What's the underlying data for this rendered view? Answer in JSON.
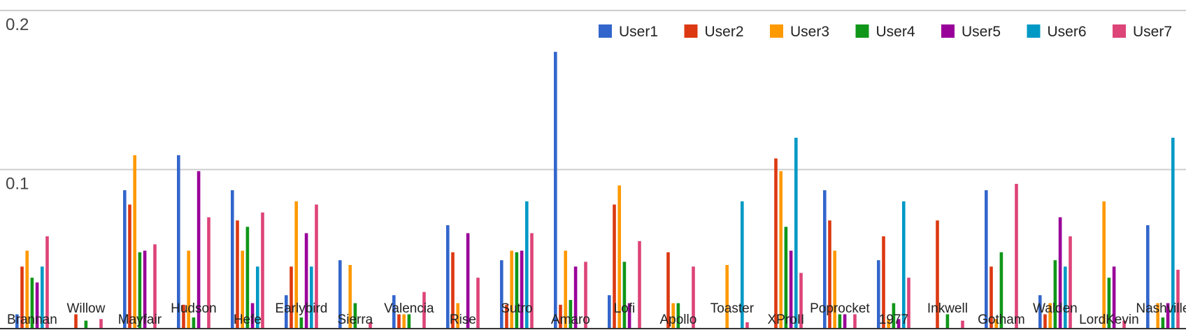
{
  "chart_data": {
    "type": "bar",
    "ylim": [
      0,
      0.2
    ],
    "yticks": [
      {
        "value": 0.2,
        "label": "0.2"
      },
      {
        "value": 0.1,
        "label": "0.1"
      }
    ],
    "grid": true,
    "legend_position": "top-right",
    "categories": [
      "Brannan",
      "Willow",
      "Mayfair",
      "Hudson",
      "Hefe",
      "Earlybird",
      "Sierra",
      "Valencia",
      "Rise",
      "Sutro",
      "Amaro",
      "Lofi",
      "Apollo",
      "Toaster",
      "XProII",
      "Poprocket",
      "1977",
      "Inkwell",
      "Gotham",
      "Walden",
      "LordKevin",
      "Nashville"
    ],
    "colors": [
      "#3366cc",
      "#dc3912",
      "#ff9900",
      "#109618",
      "#990099",
      "#0099c6",
      "#dd4477"
    ],
    "series": [
      {
        "name": "User1",
        "values": [
          0.009,
          0,
          0.087,
          0.109,
          0.087,
          0.021,
          0.043,
          0.021,
          0.065,
          0.043,
          0.174,
          0.021,
          0,
          0,
          0,
          0.087,
          0.043,
          0,
          0.087,
          0.021,
          0,
          0.065
        ]
      },
      {
        "name": "User2",
        "values": [
          0.039,
          0.009,
          0.078,
          0.015,
          0.068,
          0.039,
          0,
          0.009,
          0.048,
          0.015,
          0.015,
          0.078,
          0.048,
          0,
          0.107,
          0.068,
          0.058,
          0.068,
          0.039,
          0.009,
          0,
          0
        ]
      },
      {
        "name": "User3",
        "values": [
          0.049,
          0,
          0.109,
          0.049,
          0.049,
          0.08,
          0.04,
          0.009,
          0.016,
          0.049,
          0.049,
          0.09,
          0.016,
          0.04,
          0.099,
          0.049,
          0.006,
          0,
          0.006,
          0.016,
          0.08,
          0.016
        ]
      },
      {
        "name": "User4",
        "values": [
          0.032,
          0.005,
          0.048,
          0.007,
          0.064,
          0.007,
          0.016,
          0.009,
          0,
          0.048,
          0.018,
          0.042,
          0.016,
          0,
          0.064,
          0.009,
          0.016,
          0.009,
          0.048,
          0.043,
          0.032,
          0.007
        ]
      },
      {
        "name": "User5",
        "values": [
          0.029,
          0,
          0.049,
          0.099,
          0.016,
          0.06,
          0,
          0,
          0.06,
          0.049,
          0.039,
          0.016,
          0,
          0,
          0.049,
          0.009,
          0.006,
          0,
          0,
          0.07,
          0.039,
          0.016
        ]
      },
      {
        "name": "User6",
        "values": [
          0.039,
          0,
          0,
          0,
          0.039,
          0.039,
          0,
          0,
          0,
          0.08,
          0,
          0,
          0,
          0.08,
          0.12,
          0,
          0.08,
          0,
          0,
          0.039,
          0,
          0.12
        ]
      },
      {
        "name": "User7",
        "values": [
          0.058,
          0.006,
          0.053,
          0.07,
          0.073,
          0.078,
          0.004,
          0.023,
          0.032,
          0.06,
          0.042,
          0.055,
          0.039,
          0.004,
          0.035,
          0.009,
          0.032,
          0.005,
          0.091,
          0.058,
          0.005,
          0.037
        ]
      }
    ]
  }
}
